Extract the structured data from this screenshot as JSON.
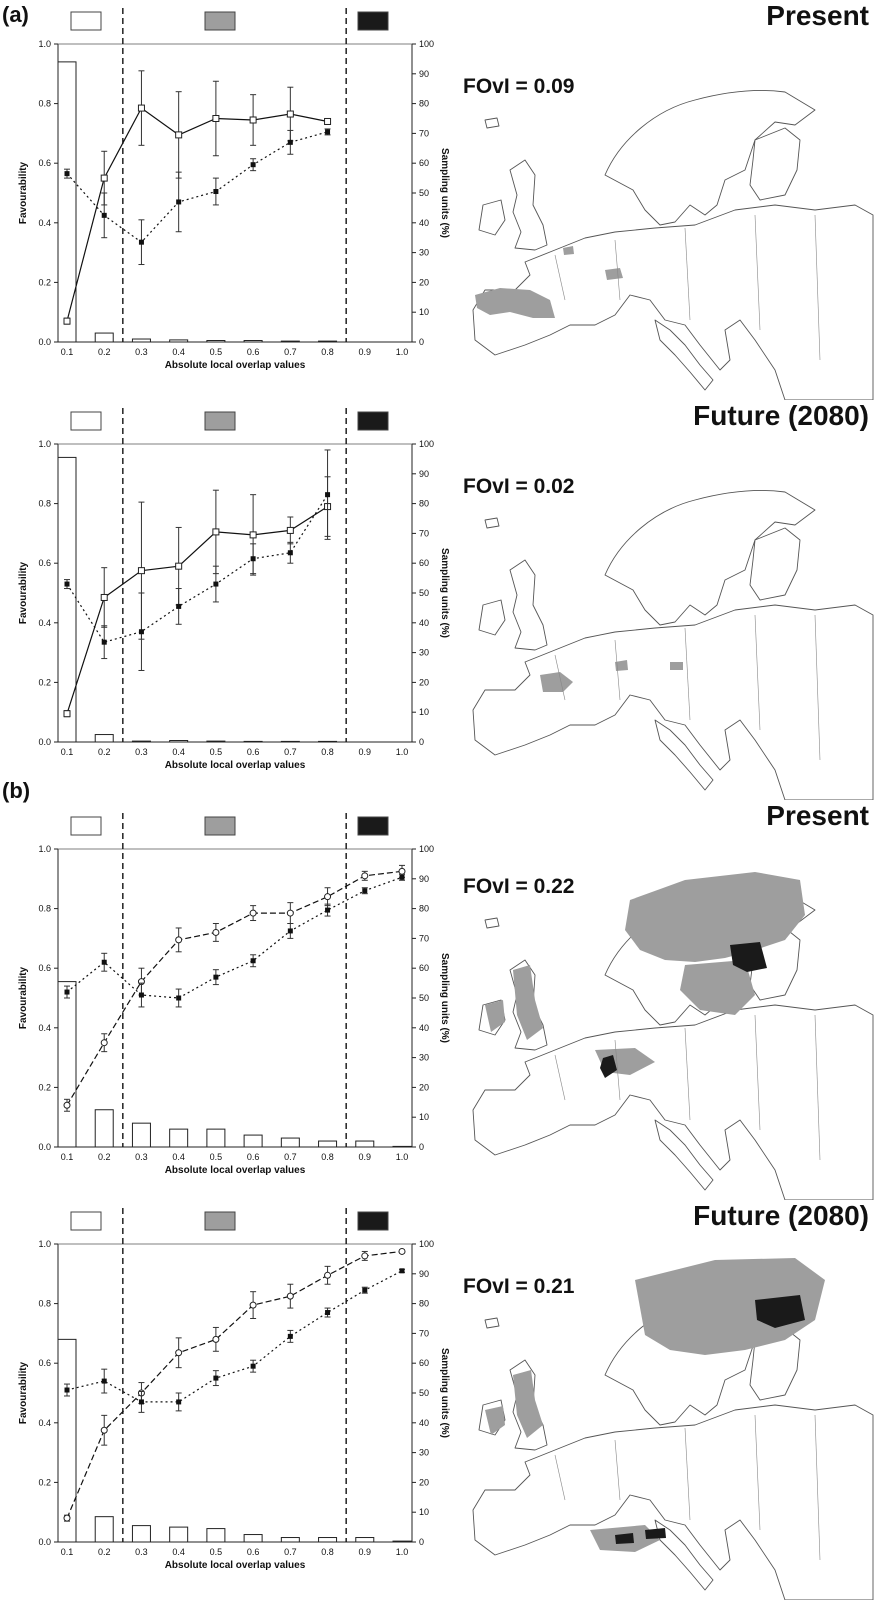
{
  "sections": [
    {
      "label": "(a)"
    },
    {
      "label": "(b)"
    }
  ],
  "legend_colors": {
    "low": "#ffffff",
    "mid": "#9e9e9e",
    "high": "#1a1a1a"
  },
  "map_titles": [
    "Present",
    "Future (2080)",
    "Present",
    "Future (2080)"
  ],
  "fovl_labels": [
    "FOvI = 0.09",
    "FOvI = 0.02",
    "FOvI = 0.22",
    "FOvI = 0.21"
  ],
  "chart_data": [
    {
      "type": "bar",
      "categories": [
        "0.1",
        "0.2",
        "0.3",
        "0.4",
        "0.5",
        "0.6",
        "0.7",
        "0.8",
        "0.9",
        "1.0"
      ],
      "xlabel": "Absolute local overlap values",
      "ylabel": "Favourability",
      "y2label": "Sampling units (%)",
      "ylim": [
        0,
        1.0
      ],
      "y2lim": [
        0,
        100
      ],
      "yticks": [
        "0.0",
        "0.2",
        "0.4",
        "0.6",
        "0.8",
        "1.0"
      ],
      "y2ticks": [
        "0",
        "10",
        "20",
        "30",
        "40",
        "50",
        "60",
        "70",
        "80",
        "90",
        "100"
      ],
      "thresholds": [
        0.25,
        0.85
      ],
      "bars": [
        94,
        3,
        1,
        0.7,
        0.5,
        0.5,
        0.3,
        0.3,
        0,
        0
      ],
      "series": [
        {
          "style": "solid",
          "marker": "open-square",
          "values": [
            0.07,
            0.55,
            0.785,
            0.695,
            0.75,
            0.745,
            0.765,
            0.74,
            null,
            null
          ],
          "errors": [
            0.01,
            0.09,
            0.125,
            0.145,
            0.125,
            0.085,
            0.09,
            0.01,
            null,
            null
          ]
        },
        {
          "style": "dotted",
          "marker": "filled-square",
          "values": [
            0.565,
            0.425,
            0.335,
            0.47,
            0.505,
            0.595,
            0.67,
            0.705,
            null,
            null
          ],
          "errors": [
            0.015,
            0.075,
            0.075,
            0.1,
            0.045,
            0.02,
            0.04,
            0.01,
            null,
            null
          ]
        }
      ]
    },
    {
      "type": "bar",
      "categories": [
        "0.1",
        "0.2",
        "0.3",
        "0.4",
        "0.5",
        "0.6",
        "0.7",
        "0.8",
        "0.9",
        "1.0"
      ],
      "xlabel": "Absolute local overlap values",
      "ylabel": "Favourability",
      "y2label": "Sampling units (%)",
      "ylim": [
        0,
        1.0
      ],
      "y2lim": [
        0,
        100
      ],
      "yticks": [
        "0.0",
        "0.2",
        "0.4",
        "0.6",
        "0.8",
        "1.0"
      ],
      "y2ticks": [
        "0",
        "10",
        "20",
        "30",
        "40",
        "50",
        "60",
        "70",
        "80",
        "90",
        "100"
      ],
      "thresholds": [
        0.25,
        0.85
      ],
      "bars": [
        95.5,
        2.5,
        0.3,
        0.5,
        0.3,
        0.2,
        0.2,
        0.2,
        0,
        0
      ],
      "series": [
        {
          "style": "solid",
          "marker": "open-square",
          "values": [
            0.095,
            0.485,
            0.575,
            0.59,
            0.705,
            0.695,
            0.71,
            0.79,
            null,
            null
          ],
          "errors": [
            0.01,
            0.1,
            0.23,
            0.13,
            0.14,
            0.135,
            0.045,
            0.1,
            null,
            null
          ]
        },
        {
          "style": "dotted",
          "marker": "filled-square",
          "values": [
            0.53,
            0.335,
            0.37,
            0.455,
            0.53,
            0.615,
            0.635,
            0.83,
            null,
            null
          ],
          "errors": [
            0.015,
            0.055,
            0.13,
            0.06,
            0.06,
            0.05,
            0.035,
            0.15,
            null,
            null
          ]
        }
      ]
    },
    {
      "type": "bar",
      "categories": [
        "0.1",
        "0.2",
        "0.3",
        "0.4",
        "0.5",
        "0.6",
        "0.7",
        "0.8",
        "0.9",
        "1.0"
      ],
      "xlabel": "Absolute local overlap values",
      "ylabel": "Favourability",
      "y2label": "Sampling units (%)",
      "ylim": [
        0,
        1.0
      ],
      "y2lim": [
        0,
        100
      ],
      "yticks": [
        "0.0",
        "0.2",
        "0.4",
        "0.6",
        "0.8",
        "1.0"
      ],
      "y2ticks": [
        "0",
        "10",
        "20",
        "30",
        "40",
        "50",
        "60",
        "70",
        "80",
        "90",
        "100"
      ],
      "thresholds": [
        0.25,
        0.85
      ],
      "bars": [
        55.5,
        12.5,
        8,
        6,
        6,
        4,
        3,
        2,
        2,
        0.2
      ],
      "series": [
        {
          "style": "dashed",
          "marker": "open-circle",
          "values": [
            0.14,
            0.35,
            0.555,
            0.695,
            0.72,
            0.785,
            0.785,
            0.84,
            0.91,
            0.925
          ],
          "errors": [
            0.02,
            0.03,
            0.045,
            0.04,
            0.03,
            0.025,
            0.035,
            0.03,
            0.015,
            0.02
          ]
        },
        {
          "style": "dotted",
          "marker": "filled-square",
          "values": [
            0.52,
            0.62,
            0.51,
            0.5,
            0.57,
            0.625,
            0.725,
            0.795,
            0.86,
            0.905
          ],
          "errors": [
            0.02,
            0.03,
            0.04,
            0.03,
            0.025,
            0.02,
            0.025,
            0.02,
            0.01,
            0.01
          ]
        }
      ]
    },
    {
      "type": "bar",
      "categories": [
        "0.1",
        "0.2",
        "0.3",
        "0.4",
        "0.5",
        "0.6",
        "0.7",
        "0.8",
        "0.9",
        "1.0"
      ],
      "xlabel": "Absolute local overlap values",
      "ylabel": "Favourability",
      "y2label": "Sampling units (%)",
      "ylim": [
        0,
        1.0
      ],
      "y2lim": [
        0,
        100
      ],
      "yticks": [
        "0.0",
        "0.2",
        "0.4",
        "0.6",
        "0.8",
        "1.0"
      ],
      "y2ticks": [
        "0",
        "10",
        "20",
        "30",
        "40",
        "50",
        "60",
        "70",
        "80",
        "90",
        "100"
      ],
      "thresholds": [
        0.25,
        0.85
      ],
      "bars": [
        68,
        8.5,
        5.5,
        5,
        4.5,
        2.5,
        1.5,
        1.5,
        1.5,
        0.3
      ],
      "series": [
        {
          "style": "dashed",
          "marker": "open-circle",
          "values": [
            0.08,
            0.375,
            0.5,
            0.635,
            0.68,
            0.795,
            0.825,
            0.895,
            0.96,
            0.975
          ],
          "errors": [
            0.01,
            0.05,
            0.035,
            0.05,
            0.04,
            0.045,
            0.04,
            0.03,
            0.015,
            0.005
          ]
        },
        {
          "style": "dotted",
          "marker": "filled-square",
          "values": [
            0.51,
            0.54,
            0.47,
            0.47,
            0.55,
            0.59,
            0.69,
            0.77,
            0.845,
            0.91
          ],
          "errors": [
            0.02,
            0.04,
            0.035,
            0.03,
            0.025,
            0.02,
            0.02,
            0.015,
            0.01,
            0.005
          ]
        }
      ]
    }
  ]
}
